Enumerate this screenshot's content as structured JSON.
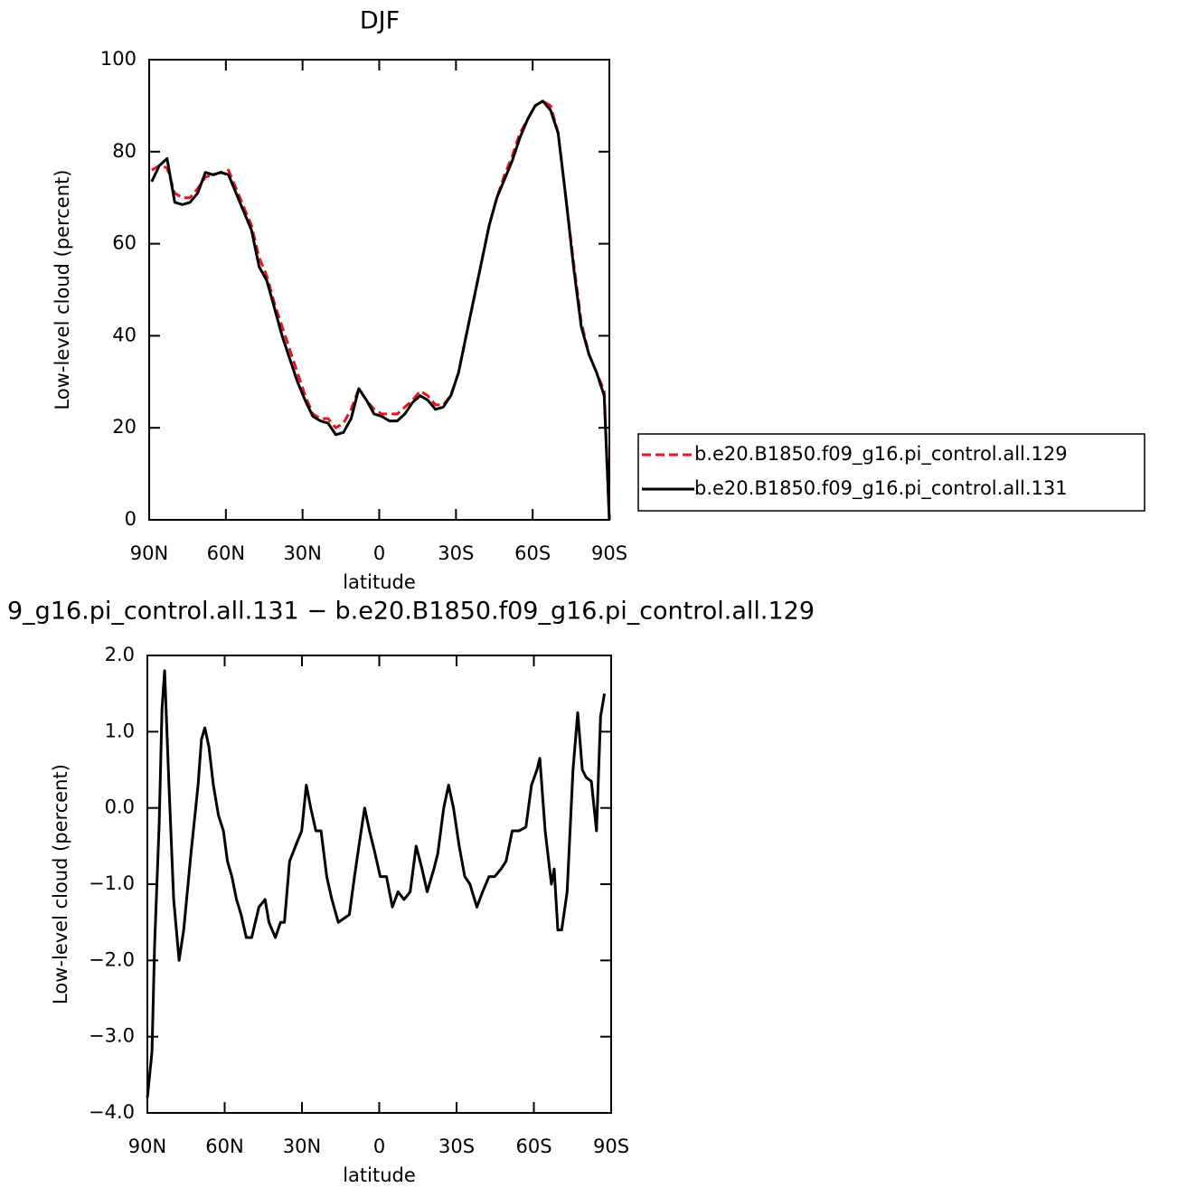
{
  "chart_data": [
    {
      "type": "line",
      "title": "DJF",
      "xlabel": "latitude",
      "ylabel": "Low-level cloud (percent)",
      "x": [
        89,
        86,
        83,
        80,
        77,
        74,
        71,
        68,
        65,
        62,
        59,
        56,
        53,
        50,
        47,
        44,
        41,
        38,
        35,
        32,
        29,
        26,
        23,
        20,
        17,
        14,
        11,
        8,
        5,
        2,
        -1,
        -4,
        -7,
        -10,
        -13,
        -16,
        -19,
        -22,
        -25,
        -28,
        -31,
        -34,
        -37,
        -40,
        -43,
        -46,
        -49,
        -52,
        -55,
        -58,
        -61,
        -64,
        -67,
        -70,
        -73,
        -76,
        -79,
        -82,
        -85,
        -88,
        -90
      ],
      "series": [
        {
          "name": "b.e20.B1850.f09_g16.pi_control.all.129",
          "color": "#e8141e",
          "dash": true,
          "values": [
            76,
            77,
            76.5,
            71,
            70,
            70,
            72,
            74.5,
            75,
            75.5,
            76,
            72,
            68,
            64,
            57,
            53,
            47,
            42,
            37,
            32,
            27,
            23,
            22,
            22,
            20,
            21,
            24,
            28.5,
            26,
            24,
            23,
            23,
            23,
            24.5,
            26,
            28,
            27,
            25,
            25,
            27,
            32,
            40,
            48,
            56,
            64,
            70,
            75,
            79,
            84,
            87,
            90,
            91,
            90,
            84,
            70,
            56,
            43,
            36,
            32,
            28,
            0
          ]
        },
        {
          "name": "b.e20.B1850.f09_g16.pi_control.all.131",
          "color": "#000000",
          "dash": false,
          "values": [
            73.5,
            77,
            78.5,
            69,
            68.5,
            69,
            71,
            75.5,
            75,
            75.5,
            75,
            71,
            67,
            63,
            55,
            52,
            46,
            40,
            35,
            30,
            26,
            22.5,
            21.5,
            21,
            18.5,
            19,
            22,
            28.5,
            26,
            23,
            22.5,
            21.5,
            21.5,
            23,
            25.5,
            27,
            26,
            24,
            24.5,
            27,
            32,
            40,
            48,
            56,
            64,
            70,
            74,
            78,
            83,
            87,
            90,
            91,
            89,
            84,
            70,
            55,
            42,
            36,
            32,
            27,
            0
          ]
        }
      ],
      "xlim": [
        90,
        -90
      ],
      "xticks": [
        {
          "value": 90,
          "label": "90N"
        },
        {
          "value": 60,
          "label": "60N"
        },
        {
          "value": 30,
          "label": "30N"
        },
        0,
        {
          "value": -30,
          "label": "30S"
        },
        {
          "value": -60,
          "label": "60S"
        },
        {
          "value": -90,
          "label": "90S"
        }
      ],
      "ylim": [
        0,
        100
      ],
      "yticks": [
        0,
        20,
        40,
        60,
        80,
        100
      ]
    },
    {
      "type": "line",
      "title": "9_g16.pi_control.all.131 − b.e20.B1850.f09_g16.pi_control.all.129",
      "xlabel": "latitude",
      "ylabel": "Low-level cloud (percent)",
      "x": [
        90,
        88.2,
        87.2,
        85.4,
        84.3,
        83.3,
        81.6,
        79.8,
        77.7,
        75.9,
        73.1,
        70.3,
        69,
        67.7,
        66.1,
        64.4,
        62.4,
        60.5,
        58.9,
        57.2,
        55.4,
        53.6,
        51.6,
        49.5,
        46.7,
        44.3,
        42.8,
        40.3,
        38.3,
        36.8,
        34.8,
        32.5,
        30.1,
        28.3,
        26.6,
        24.6,
        22.6,
        20.4,
        18.4,
        15.9,
        13.8,
        11.6,
        9.6,
        7.9,
        5.7,
        3.8,
        1.6,
        -0.4,
        -2.8,
        -5.1,
        -7.3,
        -9.6,
        -12,
        -14.3,
        -16.6,
        -18.6,
        -21.2,
        -22.7,
        -25,
        -26.9,
        -28.8,
        -31,
        -33.2,
        -35.2,
        -37.9,
        -40.1,
        -42.6,
        -44.8,
        -47.3,
        -49.2,
        -51.6,
        -54.2,
        -56.9,
        -59.1,
        -61.2,
        -62.3,
        -64.4,
        -66.8,
        -67.9,
        -69.3,
        -70.8,
        -72.9,
        -75.2,
        -77,
        -78.8,
        -80.3,
        -82.3,
        -84.3,
        -85.9,
        -87.4
      ],
      "series": [
        {
          "color": "#000000",
          "dash": false,
          "values": [
            -3.8,
            -3.2,
            -1.8,
            -0.2,
            1.3,
            1.8,
            0.3,
            -1.2,
            -2.0,
            -1.6,
            -0.6,
            0.3,
            0.9,
            1.05,
            0.8,
            0.3,
            -0.1,
            -0.3,
            -0.7,
            -0.9,
            -1.2,
            -1.4,
            -1.7,
            -1.7,
            -1.3,
            -1.2,
            -1.5,
            -1.7,
            -1.5,
            -1.5,
            -0.7,
            -0.5,
            -0.3,
            0.3,
            0.0,
            -0.3,
            -0.3,
            -0.9,
            -1.2,
            -1.5,
            -1.45,
            -1.4,
            -0.9,
            -0.5,
            0.0,
            -0.3,
            -0.6,
            -0.9,
            -0.9,
            -1.3,
            -1.1,
            -1.2,
            -1.1,
            -0.5,
            -0.8,
            -1.1,
            -0.8,
            -0.6,
            0.0,
            0.3,
            0.0,
            -0.5,
            -0.9,
            -1.0,
            -1.3,
            -1.1,
            -0.9,
            -0.9,
            -0.8,
            -0.7,
            -0.3,
            -0.3,
            -0.25,
            0.3,
            0.5,
            0.65,
            -0.3,
            -1.0,
            -0.8,
            -1.6,
            -1.6,
            -1.1,
            0.5,
            1.25,
            0.5,
            0.4,
            0.35,
            -0.3,
            1.2,
            1.5
          ]
        }
      ],
      "xlim": [
        90,
        -90
      ],
      "xticks": [
        {
          "value": 90,
          "label": "90N"
        },
        {
          "value": 60,
          "label": "60N"
        },
        {
          "value": 30,
          "label": "30N"
        },
        0,
        {
          "value": -30,
          "label": "30S"
        },
        {
          "value": -60,
          "label": "60S"
        },
        {
          "value": -90,
          "label": "90S"
        }
      ],
      "ylim": [
        -4,
        2
      ],
      "yticks": [
        {
          "value": -4,
          "label": "−4.0"
        },
        {
          "value": -3,
          "label": "−3.0"
        },
        {
          "value": -2,
          "label": "−2.0"
        },
        {
          "value": -1,
          "label": "−1.0"
        },
        {
          "value": 0,
          "label": "0.0"
        },
        {
          "value": 1,
          "label": "1.0"
        },
        {
          "value": 2,
          "label": "2.0"
        }
      ]
    }
  ]
}
